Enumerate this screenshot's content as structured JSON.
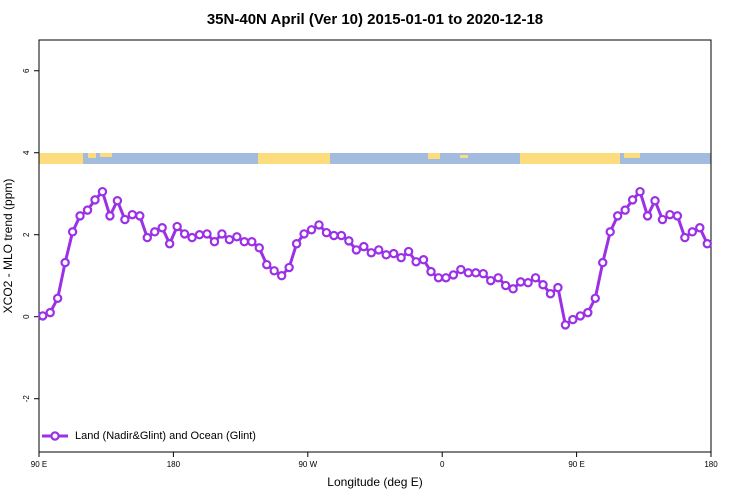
{
  "chart_data": {
    "type": "line",
    "title": "35N-40N April (Ver 10)   2015-01-01 to 2020-12-18",
    "x_label": "Longitude (deg E)",
    "y_label": "XCO2 - MLO trend (ppm)",
    "x": [
      92.5,
      97.5,
      102.5,
      107.5,
      112.5,
      117.5,
      122.5,
      127.5,
      132.5,
      137.5,
      142.5,
      147.5,
      152.5,
      157.5,
      162.5,
      167.5,
      172.5,
      177.5,
      182.5,
      187.5,
      192.5,
      197.5,
      202.5,
      207.5,
      212.5,
      217.5,
      222.5,
      227.5,
      232.5,
      237.5,
      242.5,
      247.5,
      252.5,
      257.5,
      262.5,
      267.5,
      272.5,
      277.5,
      282.5,
      287.5,
      292.5,
      297.5,
      302.5,
      307.5,
      312.5,
      317.5,
      322.5,
      327.5,
      332.5,
      337.5,
      342.5,
      347.5,
      352.5,
      357.5,
      362.5,
      367.5,
      372.5,
      377.5,
      382.5,
      387.5,
      392.5,
      397.5,
      402.5,
      407.5,
      412.5,
      417.5,
      422.5,
      427.5,
      432.5,
      437.5,
      442.5,
      447.5,
      452.5,
      457.5,
      462.5,
      467.5,
      472.5,
      477.5,
      482.5,
      487.5,
      492.5,
      497.5,
      502.5,
      507.5,
      512.5,
      517.5,
      522.5,
      527.5,
      532.5,
      537.5
    ],
    "series": [
      {
        "name": "Land (Nadir&Glint) and Ocean (Glint)",
        "color": "#9b30e6",
        "values": [
          0.02,
          0.1,
          0.45,
          1.32,
          2.07,
          2.46,
          2.6,
          2.85,
          3.05,
          2.46,
          2.83,
          2.37,
          2.49,
          2.46,
          1.93,
          2.07,
          2.17,
          1.78,
          2.2,
          2.02,
          1.93,
          2.0,
          2.02,
          1.83,
          2.02,
          1.88,
          1.95,
          1.83,
          1.83,
          1.68,
          1.27,
          1.12,
          1.0,
          1.2,
          1.78,
          2.02,
          2.12,
          2.24,
          2.05,
          1.98,
          1.98,
          1.85,
          1.63,
          1.71,
          1.56,
          1.63,
          1.51,
          1.54,
          1.44,
          1.59,
          1.34,
          1.39,
          1.1,
          0.95,
          0.95,
          1.02,
          1.15,
          1.07,
          1.07,
          1.05,
          0.88,
          0.95,
          0.76,
          0.68,
          0.85,
          0.83,
          0.95,
          0.78,
          0.56,
          0.71,
          -0.2,
          -0.07,
          0.02,
          0.1,
          0.45,
          1.32,
          2.07,
          2.46,
          2.6,
          2.85,
          3.05,
          2.46,
          2.83,
          2.37,
          2.49,
          2.46,
          1.93,
          2.07,
          2.17,
          1.78
        ]
      }
    ],
    "xlim": [
      90,
      540
    ],
    "xticks": [
      {
        "value": 90,
        "label": "90 E"
      },
      {
        "value": 180,
        "label": "180"
      },
      {
        "value": 270,
        "label": "90 W"
      },
      {
        "value": 360,
        "label": "0"
      },
      {
        "value": 450,
        "label": "90 E"
      },
      {
        "value": 540,
        "label": "180"
      }
    ],
    "ylim": [
      -3.3,
      6.75
    ],
    "yticks": [
      -2,
      0,
      2,
      4,
      6
    ],
    "legend": "bottom left"
  }
}
